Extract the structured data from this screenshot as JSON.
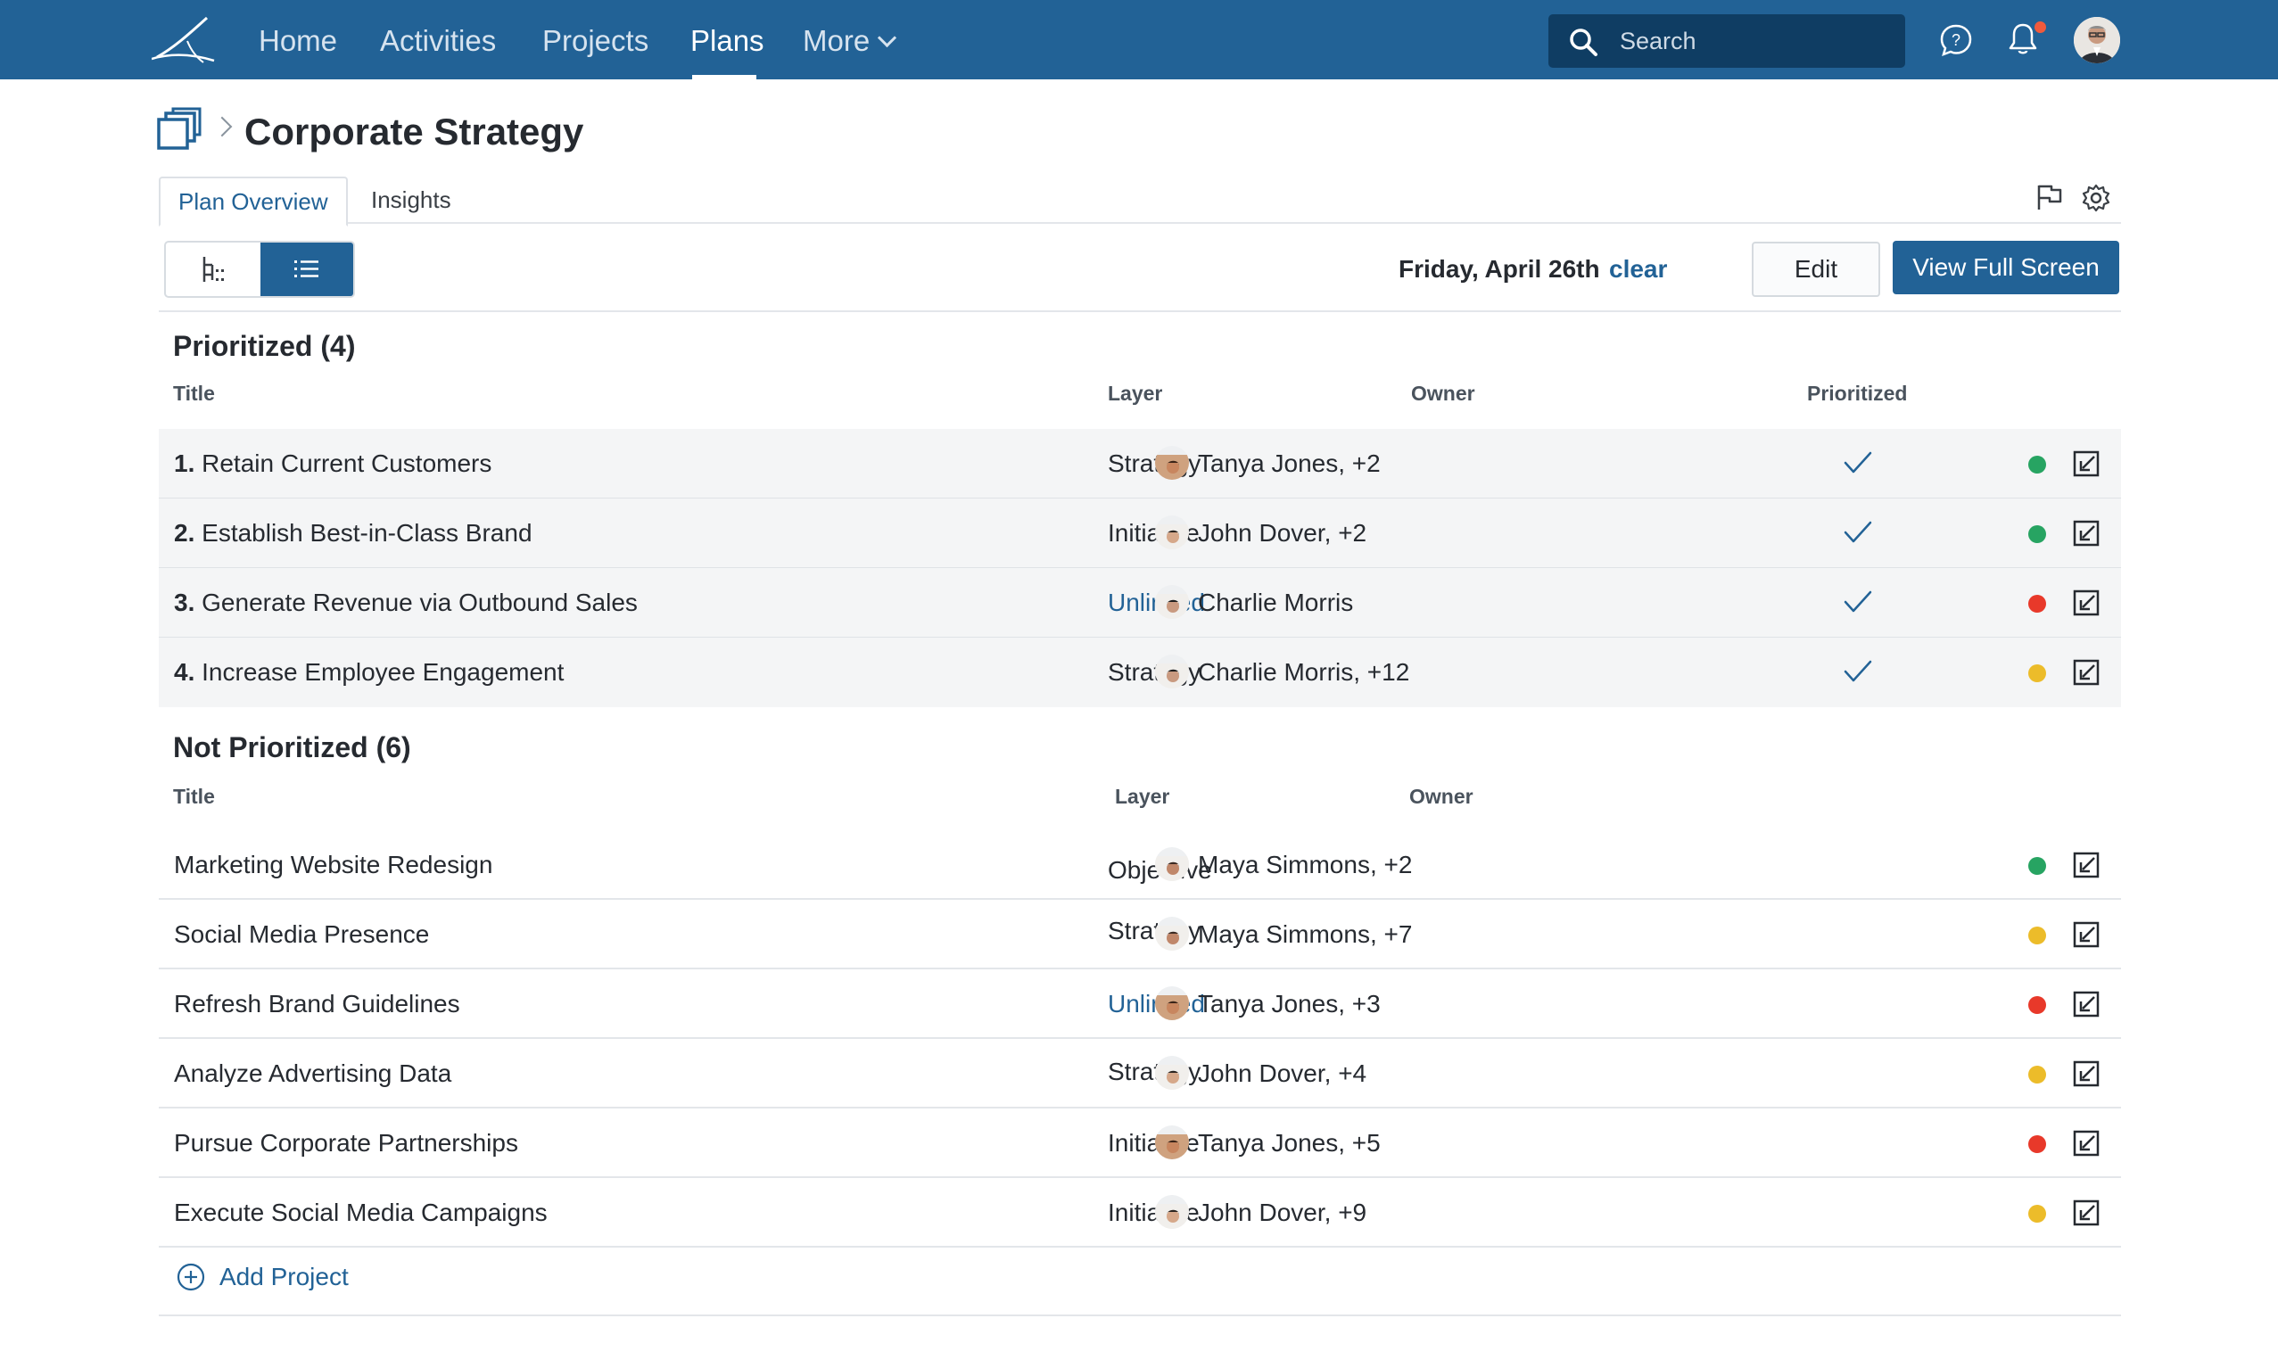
{
  "nav": {
    "items": [
      "Home",
      "Activities",
      "Projects",
      "Plans",
      "More"
    ],
    "active": "Plans",
    "search_placeholder": "Search"
  },
  "page": {
    "title": "Corporate Strategy",
    "tabs": [
      "Plan Overview",
      "Insights"
    ],
    "active_tab": "Plan Overview"
  },
  "toolbar": {
    "date": "Friday, April 26th",
    "clear_label": "clear",
    "edit_label": "Edit",
    "fullscreen_label": "View Full Screen"
  },
  "prioritized": {
    "heading": "Prioritized (4)",
    "columns": {
      "title": "Title",
      "layer": "Layer",
      "owner": "Owner",
      "prioritized": "Prioritized"
    },
    "rows": [
      {
        "num": "1.",
        "title": "Retain Current Customers",
        "layer": "Strategy",
        "owner": "Tanya Jones, +2",
        "status": "green"
      },
      {
        "num": "2.",
        "title": "Establish Best-in-Class Brand",
        "layer": "Initiative",
        "owner": "John Dover, +2",
        "status": "green"
      },
      {
        "num": "3.",
        "title": "Generate Revenue via Outbound Sales",
        "layer": "Unlinked",
        "owner": "Charlie Morris",
        "status": "red"
      },
      {
        "num": "4.",
        "title": "Increase Employee Engagement",
        "layer": "Strategy",
        "owner": "Charlie Morris, +12",
        "status": "yellow"
      }
    ]
  },
  "not_prioritized": {
    "heading": "Not Prioritized (6)",
    "columns": {
      "title": "Title",
      "layer": "Layer",
      "owner": "Owner"
    },
    "rows": [
      {
        "title": "Marketing Website Redesign",
        "layer": "Objective",
        "owner": "Maya Simmons, +2",
        "status": "green"
      },
      {
        "title": "Social Media Presence",
        "layer": "Strategy",
        "owner": "Maya Simmons, +7",
        "status": "yellow"
      },
      {
        "title": "Refresh Brand Guidelines",
        "layer": "Unlinked",
        "owner": "Tanya Jones, +3",
        "status": "red"
      },
      {
        "title": "Analyze Advertising Data",
        "layer": "Strategy",
        "owner": "John Dover, +4",
        "status": "yellow"
      },
      {
        "title": "Pursue Corporate Partnerships",
        "layer": "Initiative",
        "owner": "Tanya Jones, +5",
        "status": "red"
      },
      {
        "title": "Execute Social Media Campaigns",
        "layer": "Initiative",
        "owner": "John Dover, +9",
        "status": "yellow"
      }
    ]
  },
  "add_project_label": "Add Project",
  "colors": {
    "brand": "#226296",
    "green": "#27a462",
    "red": "#e8392a",
    "yellow": "#ecbc2a"
  }
}
